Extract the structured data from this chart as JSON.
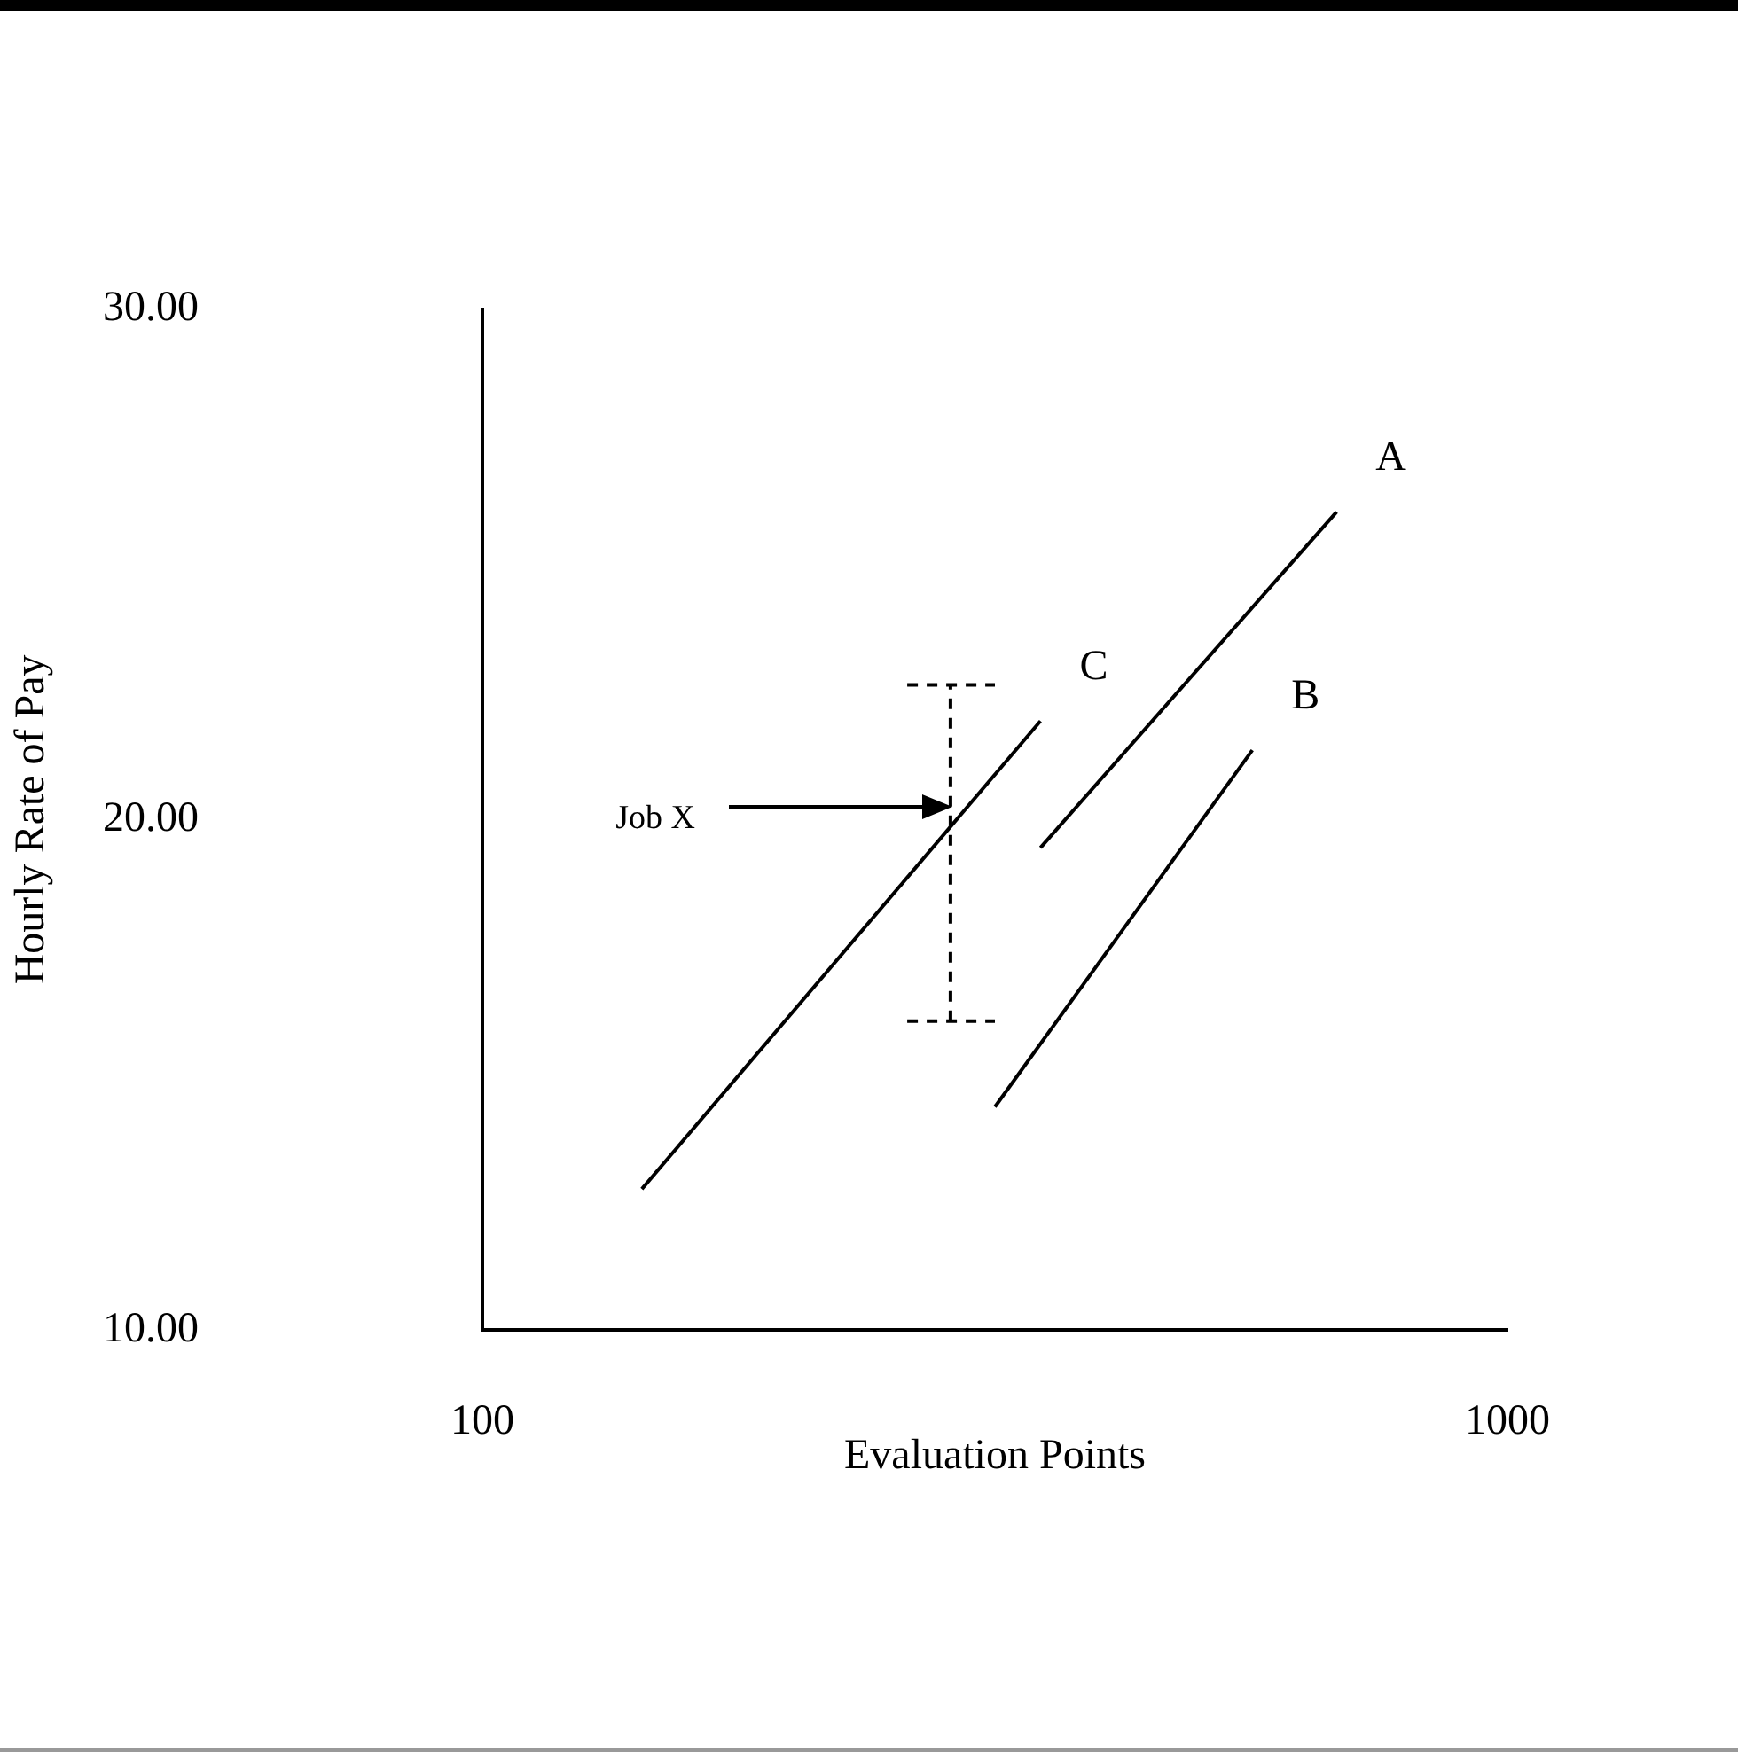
{
  "chart_data": {
    "type": "line",
    "xlabel": "Evaluation Points",
    "ylabel": "Hourly Rate of Pay",
    "xlim": [
      100,
      1000
    ],
    "xticks": [
      100,
      1000
    ],
    "ylim": [
      10,
      30
    ],
    "yticks": [
      {
        "value": 10,
        "label": "10.00"
      },
      {
        "value": 20,
        "label": "20.00"
      },
      {
        "value": 30,
        "label": "30.00"
      }
    ],
    "grid": false,
    "legend": false,
    "marker": "none",
    "line_style": "solid",
    "series": [
      {
        "name": "A",
        "color": "#000000",
        "x": [
          590,
          850
        ],
        "values": [
          19.45,
          26.03
        ]
      },
      {
        "name": "B",
        "color": "#000000",
        "x": [
          550,
          776
        ],
        "values": [
          14.37,
          21.36
        ]
      },
      {
        "name": "C",
        "color": "#000000",
        "x": [
          240,
          590
        ],
        "values": [
          12.76,
          21.93
        ]
      },
      {
        "color": "#000000",
        "x": [
          511,
          511
        ],
        "values": [
          16.05,
          22.64
        ],
        "line_style": "dashed"
      },
      {
        "color": "#000000",
        "x": [
          473,
          550
        ],
        "values": [
          22.64,
          22.64
        ],
        "line_style": "dashed"
      },
      {
        "color": "#000000",
        "x": [
          473,
          550
        ],
        "values": [
          16.05,
          16.05
        ],
        "line_style": "dashed"
      }
    ],
    "annotations": [
      "Job X"
    ]
  }
}
